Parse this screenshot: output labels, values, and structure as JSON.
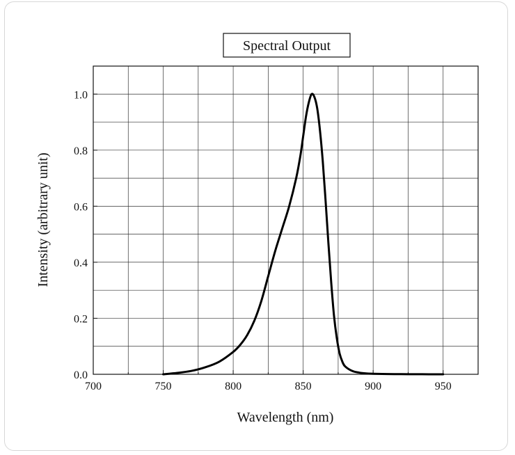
{
  "chart_data": {
    "type": "line",
    "title": "Spectral Output",
    "xlabel": "Wavelength (nm)",
    "ylabel": "Intensity (arbitrary unit)",
    "xlim": [
      700,
      975
    ],
    "ylim": [
      0,
      1.1
    ],
    "x_ticks": [
      700,
      750,
      800,
      850,
      900,
      950
    ],
    "x_tick_labels": [
      "700",
      "750",
      "800",
      "850",
      "900",
      "950"
    ],
    "y_ticks": [
      0.0,
      0.2,
      0.4,
      0.6,
      0.8,
      1.0
    ],
    "y_tick_labels": [
      "0.0",
      "0.2",
      "0.4",
      "0.6",
      "0.8",
      "1.0"
    ],
    "grid": true,
    "series": [
      {
        "x": [
          750,
          760,
          770,
          780,
          790,
          800,
          805,
          810,
          815,
          820,
          825,
          830,
          835,
          840,
          845,
          848,
          850,
          852,
          854,
          856,
          858,
          860,
          862,
          864,
          866,
          868,
          870,
          872,
          874,
          876,
          878,
          880,
          885,
          890,
          895,
          900,
          910,
          920,
          930,
          940,
          950
        ],
        "y": [
          0.0,
          0.005,
          0.012,
          0.025,
          0.045,
          0.08,
          0.105,
          0.14,
          0.19,
          0.26,
          0.35,
          0.44,
          0.52,
          0.6,
          0.7,
          0.78,
          0.85,
          0.92,
          0.97,
          1.0,
          0.99,
          0.95,
          0.87,
          0.76,
          0.62,
          0.47,
          0.33,
          0.21,
          0.13,
          0.075,
          0.045,
          0.028,
          0.012,
          0.006,
          0.003,
          0.002,
          0.001,
          0.0005,
          0.0003,
          0.0001,
          0.0
        ]
      }
    ]
  }
}
